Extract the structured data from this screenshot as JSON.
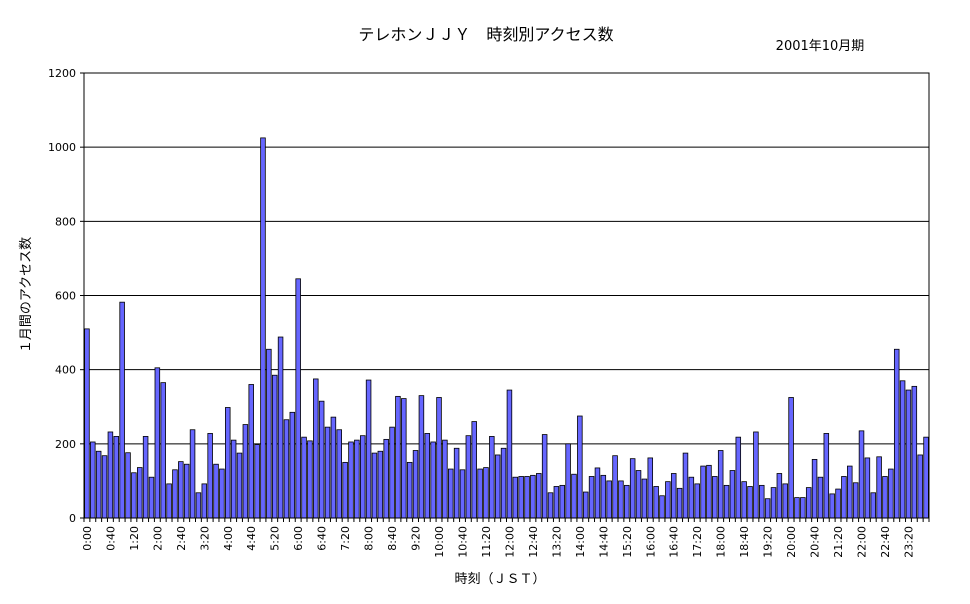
{
  "chart_data": {
    "type": "bar",
    "title": "テレホンＪＪＹ　時刻別アクセス数",
    "subtitle": "2001年10月期",
    "xlabel": "時刻（ＪＳＴ）",
    "ylabel": "１月間のアクセス数",
    "ylim": [
      0,
      1200
    ],
    "yticks": [
      "0",
      "200",
      "400",
      "600",
      "800",
      "1000",
      "1200"
    ],
    "grid": true,
    "legend": "none",
    "bar_color": "#6666ff",
    "xtick_labels": [
      "0:00",
      "0:40",
      "1:20",
      "2:00",
      "2:40",
      "3:20",
      "4:00",
      "4:40",
      "5:20",
      "6:00",
      "6:40",
      "7:20",
      "8:00",
      "8:40",
      "9:20",
      "10:00",
      "10:40",
      "11:20",
      "12:00",
      "12:40",
      "13:20",
      "14:00",
      "14:40",
      "15:20",
      "16:00",
      "16:40",
      "17:20",
      "18:00",
      "18:40",
      "19:20",
      "20:00",
      "20:40",
      "21:20",
      "22:00",
      "22:40",
      "23:20"
    ],
    "values": [
      510,
      205,
      180,
      168,
      232,
      220,
      582,
      176,
      122,
      136,
      220,
      110,
      405,
      365,
      92,
      130,
      152,
      145,
      238,
      68,
      92,
      228,
      145,
      132,
      298,
      210,
      175,
      252,
      360,
      198,
      1025,
      455,
      385,
      488,
      265,
      285,
      645,
      218,
      208,
      375,
      315,
      245,
      272,
      238,
      150,
      205,
      210,
      222,
      372,
      175,
      180,
      212,
      245,
      328,
      322,
      150,
      182,
      330,
      228,
      205,
      325,
      210,
      132,
      188,
      130,
      222,
      260,
      132,
      136,
      220,
      170,
      188,
      345,
      110,
      112,
      112,
      115,
      120,
      225,
      68,
      85,
      88,
      200,
      118,
      275,
      70,
      112,
      135,
      115,
      100,
      168,
      100,
      88,
      160,
      128,
      105,
      162,
      85,
      60,
      98,
      120,
      80,
      175,
      110,
      92,
      140,
      142,
      112,
      182,
      88,
      128,
      218,
      98,
      85,
      232,
      88,
      52,
      82,
      120,
      92,
      325,
      55,
      55,
      82,
      158,
      110,
      228,
      65,
      78,
      112,
      140,
      95,
      235,
      162,
      68,
      165,
      112,
      132,
      455,
      370,
      345,
      355,
      170,
      218
    ]
  }
}
